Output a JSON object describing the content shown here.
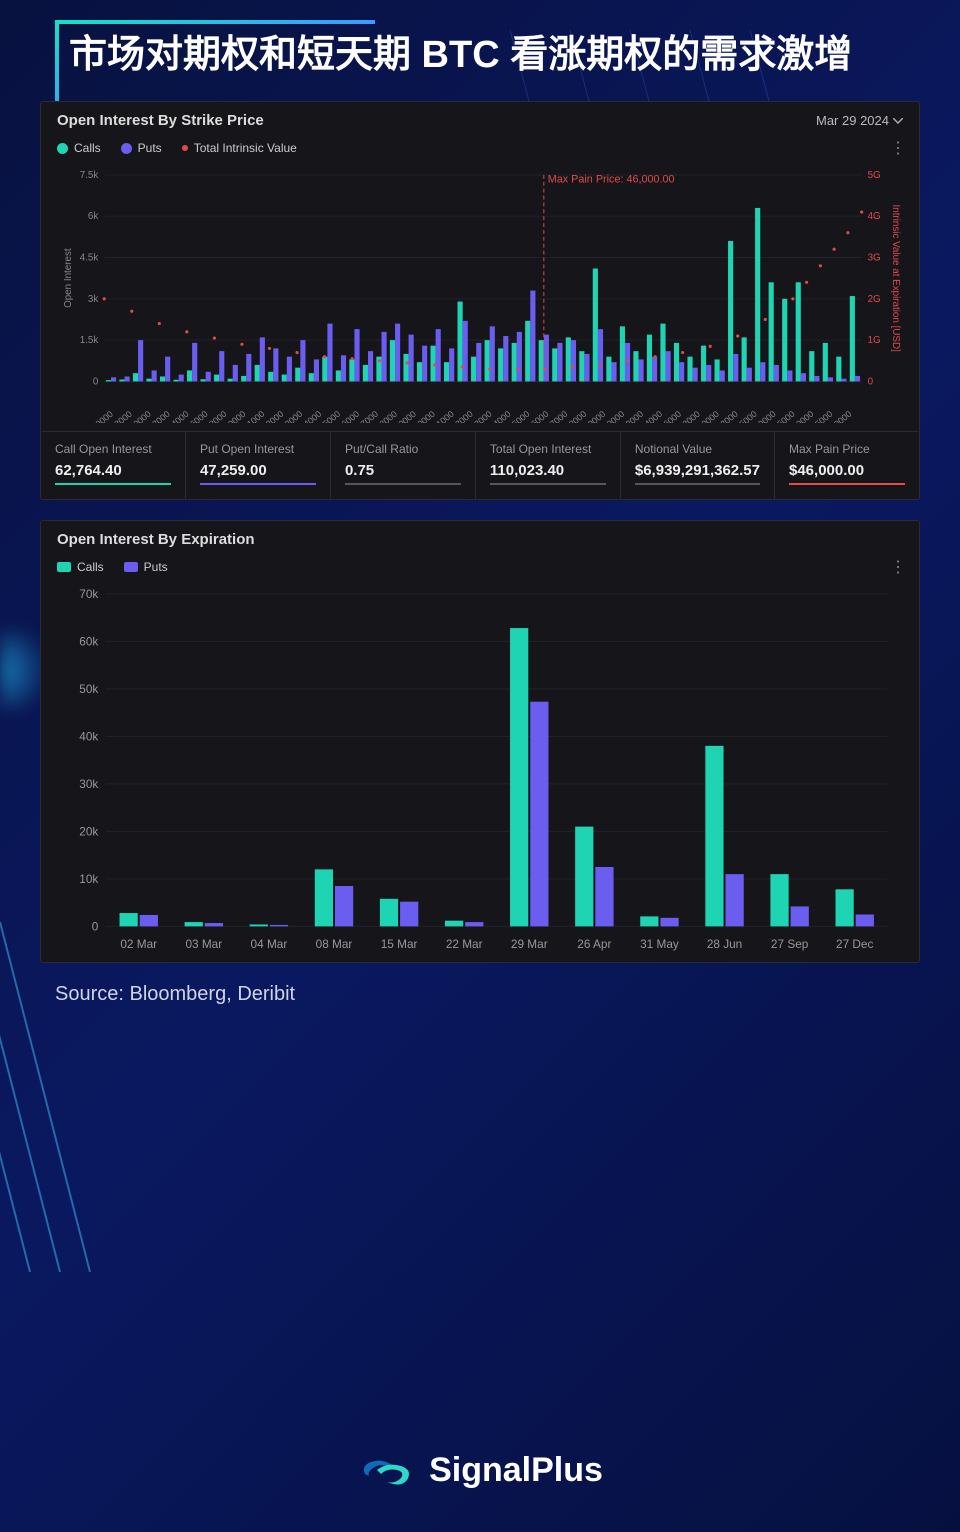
{
  "title": "市场对期权和短天期 BTC 看涨期权的需求激增",
  "source": "Source: Bloomberg, Deribit",
  "brand": "SignalPlus",
  "colors": {
    "calls": "#1fd4b2",
    "puts": "#6a5def",
    "intrinsic": "#e14b4b",
    "panel_bg": "#15151a",
    "page_bg": "#0a1449",
    "grid": "#26262f",
    "axis_text": "#888888"
  },
  "panel1": {
    "title": "Open Interest By Strike Price",
    "date": "Mar 29 2024",
    "legend": {
      "calls": "Calls",
      "puts": "Puts",
      "intrinsic": "Total Intrinsic Value"
    },
    "max_pain_label": "Max Pain Price: 46,000.00",
    "max_pain_x": 46000,
    "y_axis_label": "Open Interest",
    "y_right_label": "Intrinsic Value at Expiration [USD]",
    "y_ticks": [
      0,
      1500,
      3000,
      4500,
      6000,
      7500
    ],
    "y_tick_labels": [
      "0",
      "1.5k",
      "3k",
      "4.5k",
      "6k",
      "7.5k"
    ],
    "y_right_ticks": [
      0,
      1,
      2,
      3,
      4,
      5
    ],
    "y_right_tick_labels": [
      "0",
      "1G",
      "2G",
      "3G",
      "4G",
      "5G"
    ],
    "x_ticks": [
      "10000",
      "18000",
      "20000",
      "22000",
      "24000",
      "26000",
      "28000",
      "30000",
      "31000",
      "32000",
      "33000",
      "34000",
      "35000",
      "36000",
      "37000",
      "38000",
      "39000",
      "40000",
      "41000",
      "42000",
      "43000",
      "44000",
      "45000",
      "46000",
      "47000",
      "48000",
      "49000",
      "50000",
      "52000",
      "54000",
      "56000",
      "58000",
      "60000",
      "62000",
      "65000",
      "70000",
      "75000",
      "80000",
      "85000",
      "100000"
    ],
    "bars": [
      {
        "s": "10000",
        "c": 50,
        "p": 150
      },
      {
        "s": "12000",
        "c": 70,
        "p": 180
      },
      {
        "s": "15000",
        "c": 300,
        "p": 1500
      },
      {
        "s": "16000",
        "c": 100,
        "p": 400
      },
      {
        "s": "18000",
        "c": 180,
        "p": 900
      },
      {
        "s": "19000",
        "c": 60,
        "p": 250
      },
      {
        "s": "20000",
        "c": 400,
        "p": 1400
      },
      {
        "s": "21000",
        "c": 80,
        "p": 350
      },
      {
        "s": "22000",
        "c": 250,
        "p": 1100
      },
      {
        "s": "23000",
        "c": 100,
        "p": 600
      },
      {
        "s": "24000",
        "c": 200,
        "p": 1000
      },
      {
        "s": "25000",
        "c": 600,
        "p": 1600
      },
      {
        "s": "26000",
        "c": 350,
        "p": 1200
      },
      {
        "s": "27000",
        "c": 250,
        "p": 900
      },
      {
        "s": "28000",
        "c": 500,
        "p": 1500
      },
      {
        "s": "29000",
        "c": 300,
        "p": 800
      },
      {
        "s": "30000",
        "c": 900,
        "p": 2100
      },
      {
        "s": "31000",
        "c": 400,
        "p": 950
      },
      {
        "s": "32000",
        "c": 800,
        "p": 1900
      },
      {
        "s": "33000",
        "c": 600,
        "p": 1100
      },
      {
        "s": "34000",
        "c": 900,
        "p": 1800
      },
      {
        "s": "35000",
        "c": 1500,
        "p": 2100
      },
      {
        "s": "36000",
        "c": 1000,
        "p": 1700
      },
      {
        "s": "37000",
        "c": 700,
        "p": 1300
      },
      {
        "s": "38000",
        "c": 1300,
        "p": 1900
      },
      {
        "s": "39000",
        "c": 700,
        "p": 1200
      },
      {
        "s": "40000",
        "c": 2900,
        "p": 2200
      },
      {
        "s": "41000",
        "c": 900,
        "p": 1400
      },
      {
        "s": "42000",
        "c": 1500,
        "p": 2000
      },
      {
        "s": "43000",
        "c": 1200,
        "p": 1650
      },
      {
        "s": "44000",
        "c": 1400,
        "p": 1800
      },
      {
        "s": "45000",
        "c": 2200,
        "p": 3300
      },
      {
        "s": "46000",
        "c": 1500,
        "p": 1700
      },
      {
        "s": "47000",
        "c": 1200,
        "p": 1400
      },
      {
        "s": "48000",
        "c": 1600,
        "p": 1500
      },
      {
        "s": "49000",
        "c": 1100,
        "p": 1000
      },
      {
        "s": "50000",
        "c": 4100,
        "p": 1900
      },
      {
        "s": "51000",
        "c": 900,
        "p": 700
      },
      {
        "s": "52000",
        "c": 2000,
        "p": 1400
      },
      {
        "s": "53000",
        "c": 1100,
        "p": 800
      },
      {
        "s": "54000",
        "c": 1700,
        "p": 900
      },
      {
        "s": "55000",
        "c": 2100,
        "p": 1100
      },
      {
        "s": "56000",
        "c": 1400,
        "p": 700
      },
      {
        "s": "57000",
        "c": 900,
        "p": 500
      },
      {
        "s": "58000",
        "c": 1300,
        "p": 600
      },
      {
        "s": "59000",
        "c": 800,
        "p": 400
      },
      {
        "s": "60000",
        "c": 5100,
        "p": 1000
      },
      {
        "s": "62000",
        "c": 1600,
        "p": 500
      },
      {
        "s": "65000",
        "c": 6300,
        "p": 700
      },
      {
        "s": "70000",
        "c": 3600,
        "p": 600
      },
      {
        "s": "75000",
        "c": 3000,
        "p": 400
      },
      {
        "s": "80000",
        "c": 3600,
        "p": 300
      },
      {
        "s": "85000",
        "c": 1100,
        "p": 200
      },
      {
        "s": "90000",
        "c": 1400,
        "p": 150
      },
      {
        "s": "95000",
        "c": 900,
        "p": 100
      },
      {
        "s": "100000",
        "c": 3100,
        "p": 200
      }
    ],
    "intrinsic_points": [
      {
        "x": 0,
        "y": 2.0
      },
      {
        "x": 2,
        "y": 1.7
      },
      {
        "x": 4,
        "y": 1.4
      },
      {
        "x": 6,
        "y": 1.2
      },
      {
        "x": 8,
        "y": 1.05
      },
      {
        "x": 10,
        "y": 0.9
      },
      {
        "x": 12,
        "y": 0.8
      },
      {
        "x": 14,
        "y": 0.7
      },
      {
        "x": 16,
        "y": 0.6
      },
      {
        "x": 18,
        "y": 0.55
      },
      {
        "x": 20,
        "y": 0.5
      },
      {
        "x": 22,
        "y": 0.45
      },
      {
        "x": 24,
        "y": 0.4
      },
      {
        "x": 26,
        "y": 0.35
      },
      {
        "x": 28,
        "y": 0.3
      },
      {
        "x": 30,
        "y": 0.3
      },
      {
        "x": 32,
        "y": 0.3
      },
      {
        "x": 34,
        "y": 0.35
      },
      {
        "x": 36,
        "y": 0.4
      },
      {
        "x": 38,
        "y": 0.5
      },
      {
        "x": 40,
        "y": 0.6
      },
      {
        "x": 42,
        "y": 0.7
      },
      {
        "x": 44,
        "y": 0.85
      },
      {
        "x": 46,
        "y": 1.1
      },
      {
        "x": 48,
        "y": 1.5
      },
      {
        "x": 50,
        "y": 2.0
      },
      {
        "x": 51,
        "y": 2.4
      },
      {
        "x": 52,
        "y": 2.8
      },
      {
        "x": 53,
        "y": 3.2
      },
      {
        "x": 54,
        "y": 3.6
      },
      {
        "x": 55,
        "y": 4.1
      }
    ],
    "stats": [
      {
        "label": "Call Open Interest",
        "value": "62,764.40",
        "cls": "underline-teal"
      },
      {
        "label": "Put Open Interest",
        "value": "47,259.00",
        "cls": "underline-purple"
      },
      {
        "label": "Put/Call Ratio",
        "value": "0.75",
        "cls": "underline-grey"
      },
      {
        "label": "Total Open Interest",
        "value": "110,023.40",
        "cls": "underline-grey"
      },
      {
        "label": "Notional Value",
        "value": "$6,939,291,362.57",
        "cls": "underline-grey"
      },
      {
        "label": "Max Pain Price",
        "value": "$46,000.00",
        "cls": "underline-red"
      }
    ]
  },
  "panel2": {
    "title": "Open Interest By Expiration",
    "legend": {
      "calls": "Calls",
      "puts": "Puts"
    },
    "y_ticks": [
      0,
      10000,
      20000,
      30000,
      40000,
      50000,
      60000,
      70000
    ],
    "y_tick_labels": [
      "0",
      "10k",
      "20k",
      "30k",
      "40k",
      "50k",
      "60k",
      "70k"
    ],
    "bars": [
      {
        "label": "02 Mar",
        "c": 2800,
        "p": 2400
      },
      {
        "label": "03 Mar",
        "c": 900,
        "p": 700
      },
      {
        "label": "04 Mar",
        "c": 400,
        "p": 300
      },
      {
        "label": "08 Mar",
        "c": 12000,
        "p": 8500
      },
      {
        "label": "15 Mar",
        "c": 5800,
        "p": 5200
      },
      {
        "label": "22 Mar",
        "c": 1200,
        "p": 900
      },
      {
        "label": "29 Mar",
        "c": 62800,
        "p": 47300
      },
      {
        "label": "26 Apr",
        "c": 21000,
        "p": 12500
      },
      {
        "label": "31 May",
        "c": 2100,
        "p": 1800
      },
      {
        "label": "28 Jun",
        "c": 38000,
        "p": 11000
      },
      {
        "label": "27 Sep",
        "c": 11000,
        "p": 4200
      },
      {
        "label": "27 Dec",
        "c": 7800,
        "p": 2500
      }
    ]
  }
}
